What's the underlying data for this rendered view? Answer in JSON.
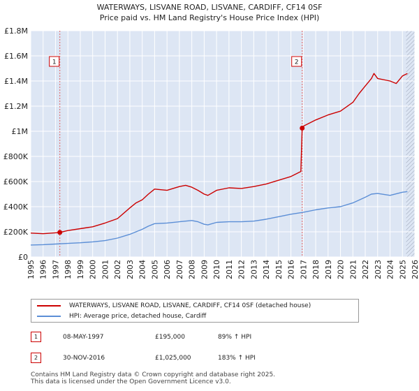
{
  "title": "WATERWAYS, LISVANE ROAD, LISVANE, CARDIFF, CF14 0SF",
  "subtitle": "Price paid vs. HM Land Registry's House Price Index (HPI)",
  "legend": {
    "property_label": "WATERWAYS, LISVANE ROAD, LISVANE, CARDIFF, CF14 0SF (detached house)",
    "hpi_label": "HPI: Average price, detached house, Cardiff"
  },
  "sales": [
    {
      "num": "1",
      "date": "08-MAY-1997",
      "price": "£195,000",
      "hpi": "89% ↑ HPI"
    },
    {
      "num": "2",
      "date": "30-NOV-2016",
      "price": "£1,025,000",
      "hpi": "183% ↑ HPI"
    }
  ],
  "footer": {
    "line1": "Contains HM Land Registry data © Crown copyright and database right 2025.",
    "line2": "This data is licensed under the Open Government Licence v3.0."
  },
  "colors": {
    "property": "#cc0000",
    "hpi": "#5b8ed6",
    "plot_bg": "#dde6f4",
    "grid": "#ffffff",
    "marker_line": "#e06060"
  },
  "chart_data": {
    "type": "line",
    "title": "WATERWAYS, LISVANE ROAD, LISVANE, CARDIFF, CF14 0SF",
    "subtitle": "Price paid vs. HM Land Registry's House Price Index (HPI)",
    "xlim": [
      1995,
      2026
    ],
    "ylim": [
      0,
      1800000
    ],
    "x_ticks": [
      "1995",
      "1996",
      "1997",
      "1998",
      "1999",
      "2000",
      "2001",
      "2002",
      "2003",
      "2004",
      "2005",
      "2006",
      "2007",
      "2008",
      "2009",
      "2010",
      "2011",
      "2012",
      "2013",
      "2014",
      "2015",
      "2016",
      "2017",
      "2018",
      "2019",
      "2020",
      "2021",
      "2022",
      "2023",
      "2024",
      "2025",
      "2026"
    ],
    "y_ticks": [
      {
        "value": 0,
        "label": "£0"
      },
      {
        "value": 200000,
        "label": "£200K"
      },
      {
        "value": 400000,
        "label": "£400K"
      },
      {
        "value": 600000,
        "label": "£600K"
      },
      {
        "value": 800000,
        "label": "£800K"
      },
      {
        "value": 1000000,
        "label": "£1M"
      },
      {
        "value": 1200000,
        "label": "£1.2M"
      },
      {
        "value": 1400000,
        "label": "£1.4M"
      },
      {
        "value": 1600000,
        "label": "£1.6M"
      },
      {
        "value": 1800000,
        "label": "£1.8M"
      }
    ],
    "forecast_start": 2025.3,
    "series": [
      {
        "name": "WATERWAYS, LISVANE ROAD, LISVANE, CARDIFF, CF14 0SF (detached house)",
        "x": [
          1995.0,
          1996.0,
          1997.0,
          1997.35,
          1998.0,
          1999.0,
          2000.0,
          2001.0,
          2002.0,
          2003.0,
          2003.5,
          2004.0,
          2004.5,
          2005.0,
          2006.0,
          2007.0,
          2007.5,
          2008.0,
          2008.5,
          2009.0,
          2009.3,
          2010.0,
          2011.0,
          2012.0,
          2013.0,
          2014.0,
          2015.0,
          2016.0,
          2016.8,
          2016.91,
          2017.0,
          2018.0,
          2019.0,
          2020.0,
          2021.0,
          2021.5,
          2022.0,
          2022.5,
          2022.7,
          2023.0,
          2024.0,
          2024.5,
          2025.0,
          2025.4
        ],
        "values": [
          190000,
          185000,
          192000,
          195000,
          210000,
          225000,
          240000,
          270000,
          305000,
          390000,
          430000,
          455000,
          500000,
          540000,
          530000,
          560000,
          570000,
          555000,
          530000,
          500000,
          490000,
          530000,
          550000,
          545000,
          560000,
          580000,
          610000,
          640000,
          680000,
          1025000,
          1040000,
          1090000,
          1130000,
          1160000,
          1230000,
          1300000,
          1360000,
          1420000,
          1460000,
          1420000,
          1400000,
          1380000,
          1440000,
          1460000
        ]
      },
      {
        "name": "HPI: Average price, detached house, Cardiff",
        "x": [
          1995.0,
          1996.0,
          1997.0,
          1998.0,
          1999.0,
          2000.0,
          2001.0,
          2002.0,
          2003.0,
          2004.0,
          2004.5,
          2005.0,
          2006.0,
          2007.0,
          2008.0,
          2008.5,
          2009.0,
          2009.3,
          2010.0,
          2011.0,
          2012.0,
          2013.0,
          2014.0,
          2015.0,
          2016.0,
          2017.0,
          2018.0,
          2019.0,
          2020.0,
          2021.0,
          2022.0,
          2022.5,
          2023.0,
          2024.0,
          2025.0,
          2025.4
        ],
        "values": [
          95000,
          98000,
          103000,
          108000,
          113000,
          120000,
          130000,
          150000,
          180000,
          220000,
          245000,
          265000,
          270000,
          280000,
          290000,
          280000,
          260000,
          255000,
          275000,
          280000,
          280000,
          285000,
          300000,
          320000,
          340000,
          355000,
          375000,
          390000,
          400000,
          430000,
          475000,
          500000,
          505000,
          490000,
          515000,
          520000
        ]
      }
    ],
    "sales_markers": [
      {
        "label": "1",
        "x": 1997.35,
        "value": 195000
      },
      {
        "label": "2",
        "x": 2016.91,
        "value": 1025000
      }
    ]
  }
}
